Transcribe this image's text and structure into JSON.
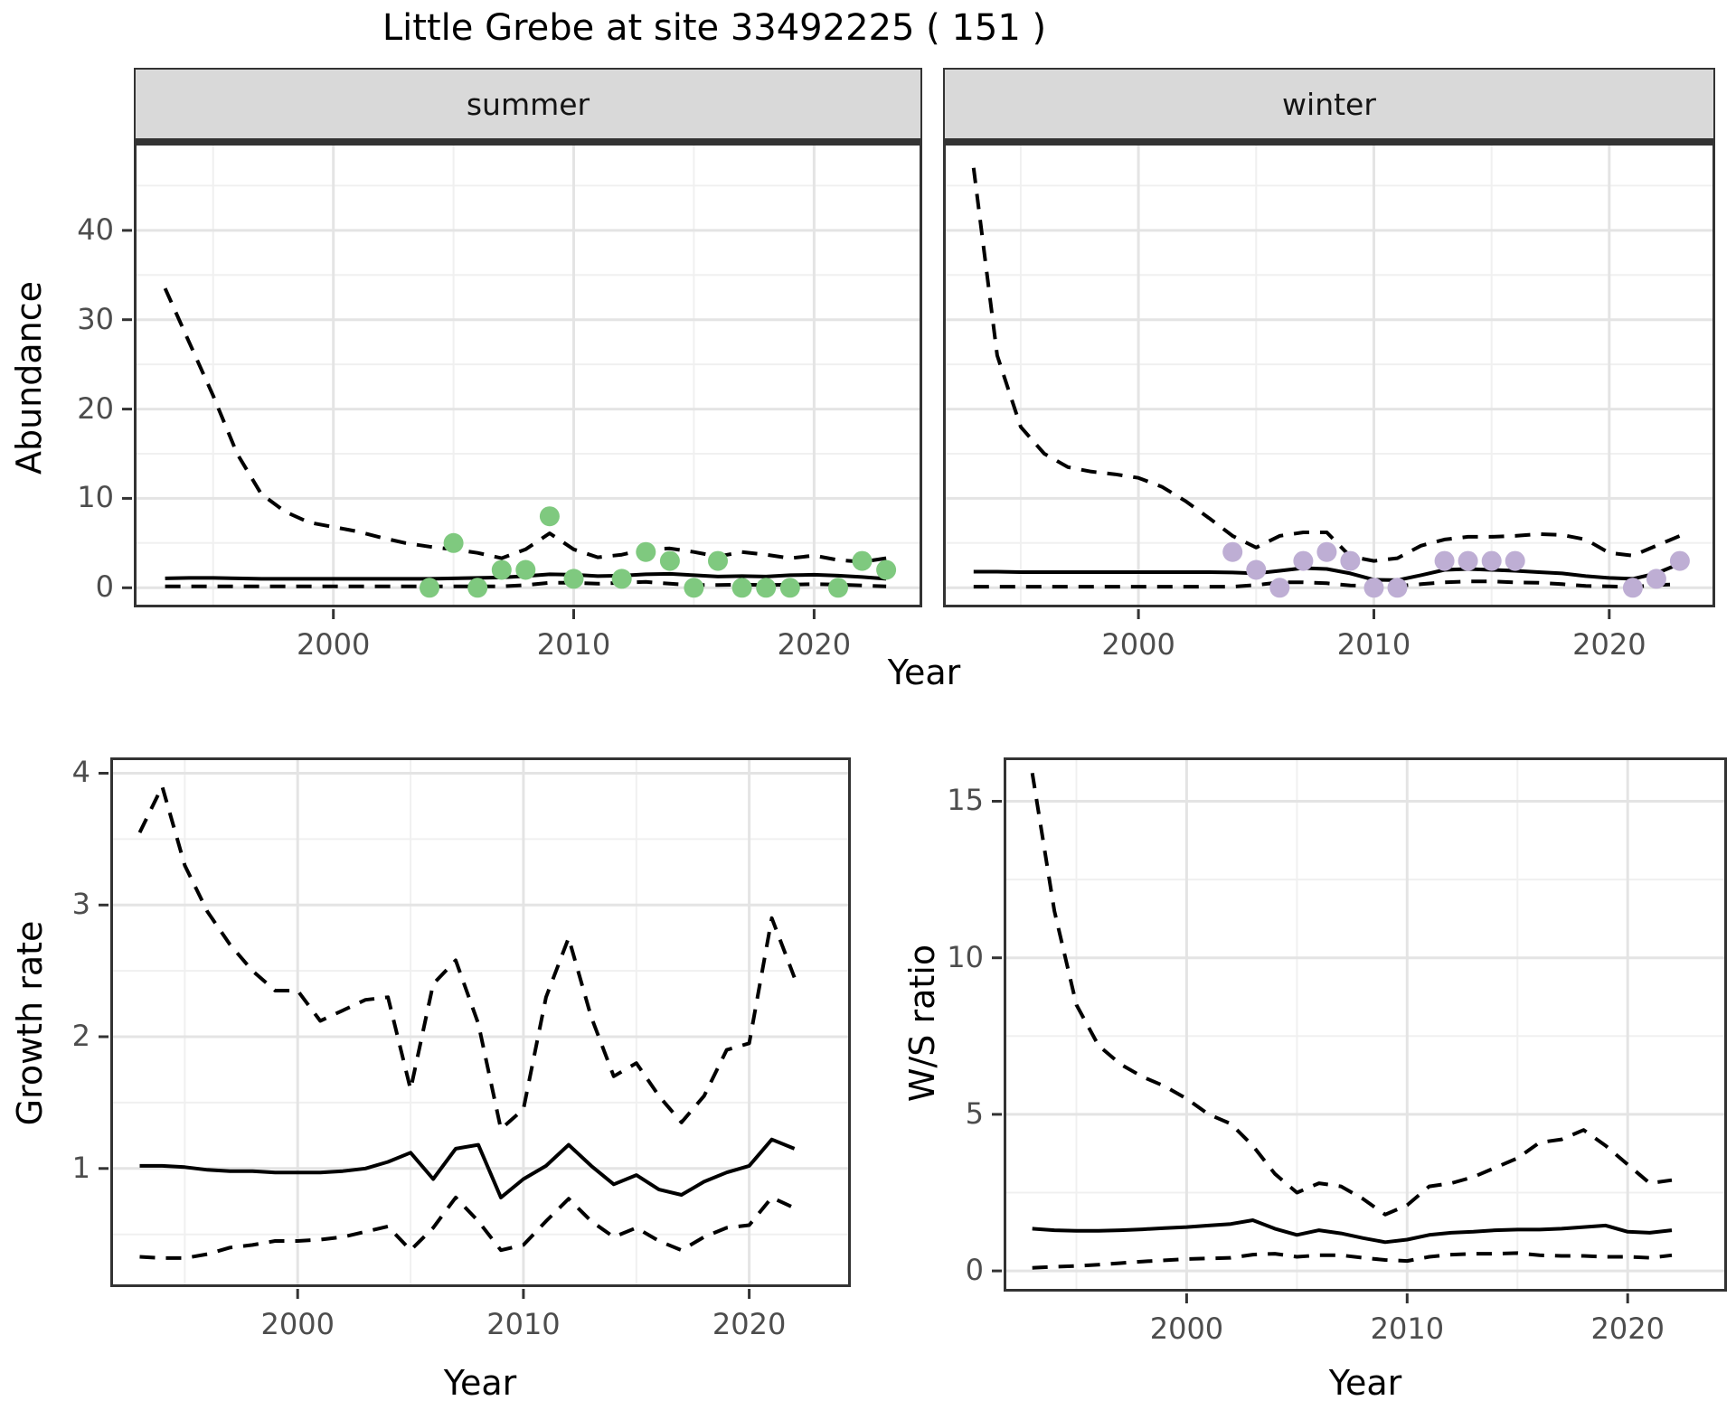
{
  "title": "Little Grebe at site 33492225 ( 151 )",
  "labels": {
    "year": "Year"
  },
  "colors": {
    "summer_point": "#7fc97f",
    "winter_point": "#beaed4",
    "line": "#000000",
    "strip_bg": "#d9d9d9",
    "tick_text": "#4d4d4d",
    "grid_major": "#e4e4e4",
    "grid_minor": "#f0f0f0",
    "panel_border": "#333333"
  },
  "chart_data": [
    {
      "id": "abundance_summer",
      "type": "line",
      "facet": "summer",
      "ylabel": "Abundance",
      "xlabel": "Year",
      "legend": "none",
      "grid": "on",
      "years": [
        1993,
        1994,
        1995,
        1996,
        1997,
        1998,
        1999,
        2000,
        2001,
        2002,
        2003,
        2004,
        2005,
        2006,
        2007,
        2008,
        2009,
        2010,
        2011,
        2012,
        2013,
        2014,
        2015,
        2016,
        2017,
        2018,
        2019,
        2020,
        2021,
        2022,
        2023
      ],
      "series": [
        {
          "name": "upper_ci",
          "style": "dashed",
          "values": [
            33.5,
            27.5,
            21.5,
            15,
            10.5,
            8.5,
            7.3,
            6.8,
            6.3,
            5.6,
            5.0,
            4.6,
            4.3,
            3.9,
            3.3,
            4.3,
            6.1,
            4.3,
            3.4,
            3.7,
            4.3,
            4.4,
            4.0,
            3.5,
            4.0,
            3.7,
            3.3,
            3.6,
            3.1,
            2.9,
            3.3
          ]
        },
        {
          "name": "median",
          "style": "solid",
          "values": [
            1.05,
            1.1,
            1.1,
            1.05,
            1.0,
            1.0,
            1.0,
            1.0,
            1.0,
            1.0,
            1.0,
            1.0,
            1.05,
            1.1,
            1.15,
            1.3,
            1.5,
            1.45,
            1.3,
            1.35,
            1.5,
            1.55,
            1.4,
            1.25,
            1.3,
            1.25,
            1.4,
            1.45,
            1.35,
            1.2,
            1.0
          ]
        },
        {
          "name": "lower_ci",
          "style": "dashed",
          "values": [
            0.15,
            0.15,
            0.15,
            0.15,
            0.15,
            0.15,
            0.15,
            0.15,
            0.15,
            0.15,
            0.15,
            0.15,
            0.15,
            0.15,
            0.15,
            0.3,
            0.55,
            0.55,
            0.45,
            0.55,
            0.65,
            0.45,
            0.3,
            0.3,
            0.35,
            0.3,
            0.35,
            0.4,
            0.35,
            0.25,
            0.15
          ]
        }
      ],
      "points": {
        "name": "summer_counts",
        "color": "#7fc97f",
        "data": [
          [
            2004,
            0
          ],
          [
            2005,
            5
          ],
          [
            2006,
            0
          ],
          [
            2007,
            2
          ],
          [
            2008,
            2
          ],
          [
            2009,
            8
          ],
          [
            2010,
            1
          ],
          [
            2012,
            1
          ],
          [
            2013,
            4
          ],
          [
            2014,
            3
          ],
          [
            2015,
            0
          ],
          [
            2016,
            3
          ],
          [
            2017,
            0
          ],
          [
            2018,
            0
          ],
          [
            2019,
            0
          ],
          [
            2021,
            0
          ],
          [
            2022,
            3
          ],
          [
            2023,
            2
          ]
        ]
      },
      "xlim": [
        1991.7,
        2024.5
      ],
      "ylim": [
        -2.2,
        49.8
      ],
      "xticks": [
        2000,
        2010,
        2020
      ],
      "yticks": [
        0,
        10,
        20,
        30,
        40
      ],
      "xminor": [
        1995,
        2005,
        2015
      ],
      "yminor": [
        5,
        15,
        25,
        35,
        45
      ]
    },
    {
      "id": "abundance_winter",
      "type": "line",
      "facet": "winter",
      "ylabel": "Abundance",
      "xlabel": "Year",
      "legend": "none",
      "grid": "on",
      "years": [
        1993,
        1994,
        1995,
        1996,
        1997,
        1998,
        1999,
        2000,
        2001,
        2002,
        2003,
        2004,
        2005,
        2006,
        2007,
        2008,
        2009,
        2010,
        2011,
        2012,
        2013,
        2014,
        2015,
        2016,
        2017,
        2018,
        2019,
        2020,
        2021,
        2022,
        2023
      ],
      "series": [
        {
          "name": "upper_ci",
          "style": "dashed",
          "values": [
            47,
            26,
            18,
            15,
            13.5,
            13,
            12.7,
            12.3,
            11.3,
            9.7,
            7.8,
            5.8,
            4.5,
            5.8,
            6.2,
            6.2,
            3.5,
            3.0,
            3.3,
            4.7,
            5.4,
            5.7,
            5.7,
            5.8,
            6.0,
            5.9,
            5.4,
            3.9,
            3.6,
            4.7,
            5.8
          ]
        },
        {
          "name": "median",
          "style": "solid",
          "values": [
            1.8,
            1.8,
            1.75,
            1.75,
            1.75,
            1.75,
            1.75,
            1.75,
            1.75,
            1.75,
            1.75,
            1.7,
            1.6,
            1.9,
            2.2,
            2.1,
            1.6,
            0.9,
            0.85,
            1.4,
            2.0,
            2.1,
            2.0,
            1.9,
            1.75,
            1.6,
            1.3,
            1.1,
            1.0,
            1.6,
            2.7
          ]
        },
        {
          "name": "lower_ci",
          "style": "dashed",
          "values": [
            0.12,
            0.12,
            0.12,
            0.12,
            0.12,
            0.12,
            0.12,
            0.12,
            0.12,
            0.12,
            0.12,
            0.12,
            0.3,
            0.6,
            0.6,
            0.5,
            0.25,
            0.2,
            0.2,
            0.4,
            0.6,
            0.7,
            0.7,
            0.6,
            0.55,
            0.4,
            0.2,
            0.15,
            0.1,
            0.3,
            0.4
          ]
        }
      ],
      "points": {
        "name": "winter_counts",
        "color": "#beaed4",
        "data": [
          [
            2004,
            4
          ],
          [
            2005,
            2
          ],
          [
            2006,
            0
          ],
          [
            2007,
            3
          ],
          [
            2008,
            4
          ],
          [
            2009,
            3
          ],
          [
            2010,
            0
          ],
          [
            2011,
            0
          ],
          [
            2013,
            3
          ],
          [
            2014,
            3
          ],
          [
            2015,
            3
          ],
          [
            2016,
            3
          ],
          [
            2021,
            0
          ],
          [
            2022,
            1
          ],
          [
            2023,
            3
          ]
        ]
      },
      "xlim": [
        1991.7,
        2024.5
      ],
      "ylim": [
        -2.2,
        49.8
      ],
      "xticks": [
        2000,
        2010,
        2020
      ],
      "yticks": [
        0,
        10,
        20,
        30,
        40
      ],
      "xminor": [
        1995,
        2005,
        2015
      ],
      "yminor": [
        5,
        15,
        25,
        35,
        45
      ]
    },
    {
      "id": "growth_rate",
      "type": "line",
      "facet": "",
      "ylabel": "Growth rate",
      "xlabel": "Year",
      "legend": "none",
      "grid": "on",
      "years": [
        1993,
        1994,
        1995,
        1996,
        1997,
        1998,
        1999,
        2000,
        2001,
        2002,
        2003,
        2004,
        2005,
        2006,
        2007,
        2008,
        2009,
        2010,
        2011,
        2012,
        2013,
        2014,
        2015,
        2016,
        2017,
        2018,
        2019,
        2020,
        2021,
        2022
      ],
      "series": [
        {
          "name": "upper_ci",
          "style": "dashed",
          "values": [
            3.55,
            3.9,
            3.3,
            2.95,
            2.7,
            2.5,
            2.35,
            2.35,
            2.12,
            2.2,
            2.28,
            2.3,
            1.6,
            2.4,
            2.58,
            2.1,
            1.3,
            1.45,
            2.3,
            2.75,
            2.15,
            1.7,
            1.8,
            1.55,
            1.35,
            1.55,
            1.9,
            1.95,
            2.9,
            2.45
          ]
        },
        {
          "name": "median",
          "style": "solid",
          "values": [
            1.02,
            1.02,
            1.01,
            0.99,
            0.98,
            0.98,
            0.97,
            0.97,
            0.97,
            0.98,
            1.0,
            1.05,
            1.12,
            0.92,
            1.15,
            1.18,
            0.78,
            0.92,
            1.02,
            1.18,
            1.02,
            0.88,
            0.95,
            0.84,
            0.8,
            0.9,
            0.97,
            1.02,
            1.22,
            1.15
          ]
        },
        {
          "name": "lower_ci",
          "style": "dashed",
          "values": [
            0.33,
            0.32,
            0.32,
            0.35,
            0.4,
            0.42,
            0.45,
            0.45,
            0.46,
            0.48,
            0.52,
            0.56,
            0.38,
            0.55,
            0.78,
            0.6,
            0.38,
            0.42,
            0.6,
            0.77,
            0.6,
            0.48,
            0.55,
            0.45,
            0.38,
            0.48,
            0.55,
            0.57,
            0.78,
            0.7
          ]
        }
      ],
      "points": null,
      "xlim": [
        1991.7,
        2024.5
      ],
      "ylim": [
        0.1,
        4.12
      ],
      "xticks": [
        2000,
        2010,
        2020
      ],
      "yticks": [
        1,
        2,
        3,
        4
      ],
      "xminor": [
        1995,
        2005,
        2015
      ],
      "yminor": [
        0.5,
        1.5,
        2.5,
        3.5
      ]
    },
    {
      "id": "ws_ratio",
      "type": "line",
      "facet": "",
      "ylabel": "W/S ratio",
      "xlabel": "Year",
      "legend": "none",
      "grid": "on",
      "years": [
        1993,
        1994,
        1995,
        1996,
        1997,
        1998,
        1999,
        2000,
        2001,
        2002,
        2003,
        2004,
        2005,
        2006,
        2007,
        2008,
        2009,
        2010,
        2011,
        2012,
        2013,
        2014,
        2015,
        2016,
        2017,
        2018,
        2019,
        2020,
        2021,
        2022
      ],
      "series": [
        {
          "name": "upper_ci",
          "style": "dashed",
          "values": [
            15.9,
            11.5,
            8.5,
            7.2,
            6.6,
            6.2,
            5.9,
            5.5,
            5.0,
            4.7,
            4.0,
            3.1,
            2.5,
            2.8,
            2.7,
            2.3,
            1.8,
            2.1,
            2.7,
            2.8,
            3.0,
            3.3,
            3.6,
            4.1,
            4.2,
            4.5,
            4.0,
            3.4,
            2.8,
            2.9
          ]
        },
        {
          "name": "median",
          "style": "solid",
          "values": [
            1.35,
            1.3,
            1.28,
            1.28,
            1.3,
            1.33,
            1.37,
            1.4,
            1.45,
            1.5,
            1.62,
            1.35,
            1.15,
            1.3,
            1.2,
            1.05,
            0.92,
            1.0,
            1.15,
            1.22,
            1.25,
            1.3,
            1.32,
            1.32,
            1.35,
            1.4,
            1.45,
            1.25,
            1.22,
            1.3
          ]
        },
        {
          "name": "lower_ci",
          "style": "dashed",
          "values": [
            0.1,
            0.13,
            0.16,
            0.2,
            0.25,
            0.3,
            0.34,
            0.38,
            0.4,
            0.42,
            0.52,
            0.55,
            0.45,
            0.5,
            0.5,
            0.42,
            0.35,
            0.32,
            0.45,
            0.52,
            0.55,
            0.55,
            0.57,
            0.5,
            0.48,
            0.48,
            0.45,
            0.45,
            0.42,
            0.5
          ]
        }
      ],
      "points": null,
      "xlim": [
        1991.7,
        2024.5
      ],
      "ylim": [
        -0.66,
        16.4
      ],
      "xticks": [
        2000,
        2010,
        2020
      ],
      "yticks": [
        0,
        5,
        10,
        15
      ],
      "xminor": [
        1995,
        2005,
        2015
      ],
      "yminor": [
        2.5,
        7.5,
        12.5
      ]
    }
  ]
}
